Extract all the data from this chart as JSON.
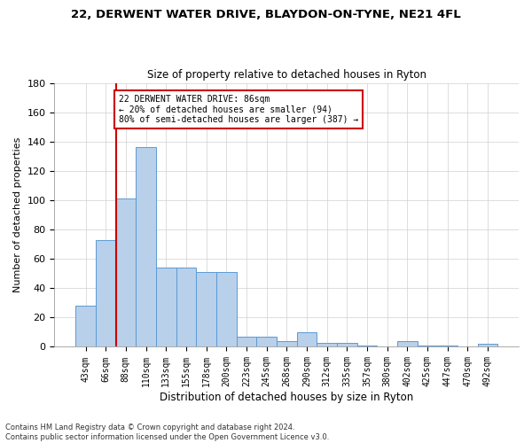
{
  "title1": "22, DERWENT WATER DRIVE, BLAYDON-ON-TYNE, NE21 4FL",
  "title2": "Size of property relative to detached houses in Ryton",
  "xlabel": "Distribution of detached houses by size in Ryton",
  "ylabel": "Number of detached properties",
  "categories": [
    "43sqm",
    "66sqm",
    "88sqm",
    "110sqm",
    "133sqm",
    "155sqm",
    "178sqm",
    "200sqm",
    "223sqm",
    "245sqm",
    "268sqm",
    "290sqm",
    "312sqm",
    "335sqm",
    "357sqm",
    "380sqm",
    "402sqm",
    "425sqm",
    "447sqm",
    "470sqm",
    "492sqm"
  ],
  "values": [
    28,
    73,
    101,
    136,
    54,
    54,
    51,
    51,
    7,
    7,
    4,
    10,
    3,
    3,
    1,
    0,
    4,
    1,
    1,
    0,
    2
  ],
  "bar_color": "#b8d0ea",
  "bar_edge_color": "#5b9bd5",
  "vline_x": 1.5,
  "vline_color": "#cc0000",
  "annotation_text": "22 DERWENT WATER DRIVE: 86sqm\n← 20% of detached houses are smaller (94)\n80% of semi-detached houses are larger (387) →",
  "annotation_box_color": "#ffffff",
  "annotation_box_edge": "#cc0000",
  "ylim": [
    0,
    180
  ],
  "yticks": [
    0,
    20,
    40,
    60,
    80,
    100,
    120,
    140,
    160,
    180
  ],
  "footnote": "Contains HM Land Registry data © Crown copyright and database right 2024.\nContains public sector information licensed under the Open Government Licence v3.0.",
  "background_color": "#ffffff",
  "grid_color": "#d0d0d0",
  "title1_fontsize": 9.5,
  "title2_fontsize": 8.5,
  "xlabel_fontsize": 8.5,
  "ylabel_fontsize": 8,
  "tick_fontsize": 7,
  "footnote_fontsize": 6
}
